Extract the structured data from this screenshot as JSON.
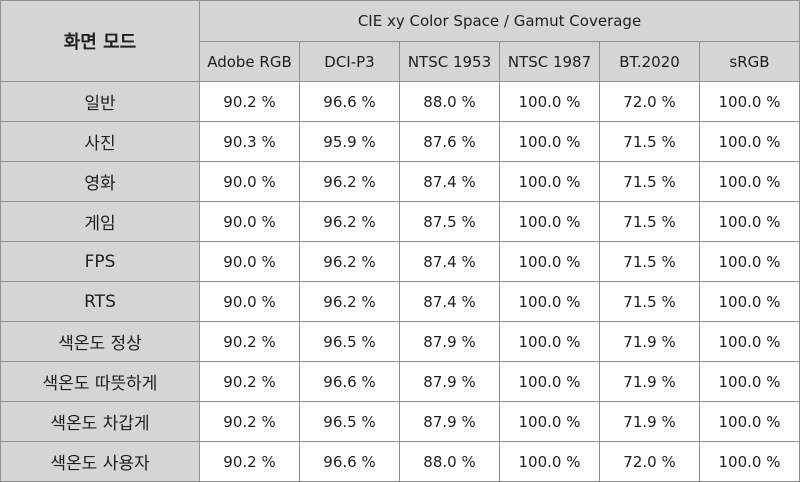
{
  "table": {
    "mode_header": "화면 모드",
    "group_header": "CIE xy Color Space / Gamut Coverage",
    "columns": [
      "Adobe RGB",
      "DCI-P3",
      "NTSC 1953",
      "NTSC 1987",
      "BT.2020",
      "sRGB"
    ],
    "rows": [
      {
        "mode": "일반",
        "values": [
          "90.2 %",
          "96.6 %",
          "88.0 %",
          "100.0 %",
          "72.0 %",
          "100.0 %"
        ]
      },
      {
        "mode": "사진",
        "values": [
          "90.3 %",
          "95.9 %",
          "87.6 %",
          "100.0 %",
          "71.5 %",
          "100.0 %"
        ]
      },
      {
        "mode": "영화",
        "values": [
          "90.0 %",
          "96.2 %",
          "87.4 %",
          "100.0 %",
          "71.5 %",
          "100.0 %"
        ]
      },
      {
        "mode": "게임",
        "values": [
          "90.0 %",
          "96.2 %",
          "87.5 %",
          "100.0 %",
          "71.5 %",
          "100.0 %"
        ]
      },
      {
        "mode": "FPS",
        "values": [
          "90.0 %",
          "96.2 %",
          "87.4 %",
          "100.0 %",
          "71.5 %",
          "100.0 %"
        ]
      },
      {
        "mode": "RTS",
        "values": [
          "90.0 %",
          "96.2 %",
          "87.4 %",
          "100.0 %",
          "71.5 %",
          "100.0 %"
        ]
      },
      {
        "mode": "색온도 정상",
        "values": [
          "90.2 %",
          "96.5 %",
          "87.9 %",
          "100.0 %",
          "71.9 %",
          "100.0 %"
        ]
      },
      {
        "mode": "색온도 따뜻하게",
        "values": [
          "90.2 %",
          "96.6 %",
          "87.9 %",
          "100.0 %",
          "71.9 %",
          "100.0 %"
        ]
      },
      {
        "mode": "색온도 차갑게",
        "values": [
          "90.2 %",
          "96.5 %",
          "87.9 %",
          "100.0 %",
          "71.9 %",
          "100.0 %"
        ]
      },
      {
        "mode": "색온도 사용자",
        "values": [
          "90.2 %",
          "96.6 %",
          "88.0 %",
          "100.0 %",
          "72.0 %",
          "100.0 %"
        ]
      }
    ]
  },
  "colors": {
    "header_bg": "#d5d5d5",
    "cell_bg": "#ffffff",
    "border": "#8f8f8f",
    "text": "#202020"
  }
}
